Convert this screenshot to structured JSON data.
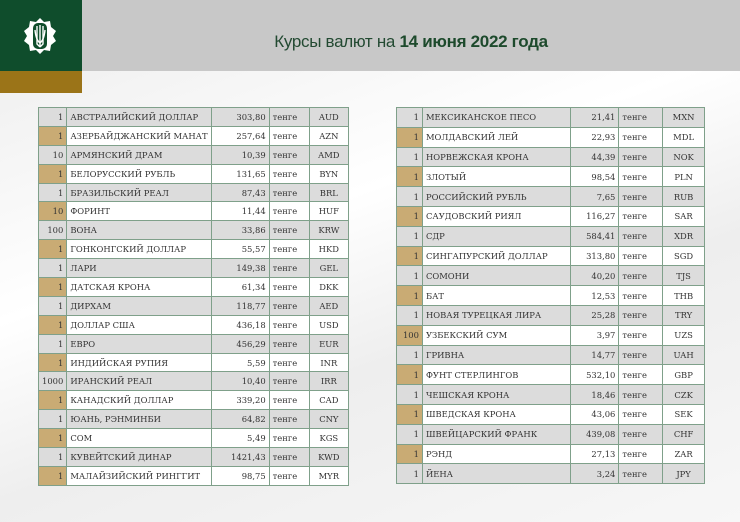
{
  "header": {
    "title_prefix": "Курсы валют на",
    "title_date": "14 июня 2022 года",
    "logo": "national-bank-kazakhstan-emblem"
  },
  "colors": {
    "brand_green": "#0f4d2c",
    "gold": "#9b7418",
    "row_alt_gray": "#dcdcdc",
    "nominal_tan": "#c9ab74"
  },
  "left_table": [
    {
      "nominal": "1",
      "name": "АВСТРАЛИЙСКИЙ ДОЛЛАР",
      "rate": "303,80",
      "unit": "тенге",
      "code": "AUD"
    },
    {
      "nominal": "1",
      "name": "АЗЕРБАЙДЖАНСКИЙ МАНАТ",
      "rate": "257,64",
      "unit": "тенге",
      "code": "AZN"
    },
    {
      "nominal": "10",
      "name": "АРМЯНСКИЙ  ДРАМ",
      "rate": "10,39",
      "unit": "тенге",
      "code": "AMD"
    },
    {
      "nominal": "1",
      "name": "БЕЛОРУССКИЙ РУБЛЬ",
      "rate": "131,65",
      "unit": "тенге",
      "code": "BYN"
    },
    {
      "nominal": "1",
      "name": "БРАЗИЛЬСКИЙ РЕАЛ",
      "rate": "87,43",
      "unit": "тенге",
      "code": "BRL"
    },
    {
      "nominal": "10",
      "name": "ФОРИНТ",
      "rate": "11,44",
      "unit": "тенге",
      "code": "HUF"
    },
    {
      "nominal": "100",
      "name": "ВОНА",
      "rate": "33,86",
      "unit": "тенге",
      "code": "KRW"
    },
    {
      "nominal": "1",
      "name": "ГОНКОНГСКИЙ ДОЛЛАР",
      "rate": "55,57",
      "unit": "тенге",
      "code": "HKD"
    },
    {
      "nominal": "1",
      "name": "ЛАРИ",
      "rate": "149,38",
      "unit": "тенге",
      "code": "GEL"
    },
    {
      "nominal": "1",
      "name": "ДАТСКАЯ КРОНА",
      "rate": "61,34",
      "unit": "тенге",
      "code": "DKK"
    },
    {
      "nominal": "1",
      "name": "ДИРХАМ",
      "rate": "118,77",
      "unit": "тенге",
      "code": "AED"
    },
    {
      "nominal": "1",
      "name": "ДОЛЛАР США",
      "rate": "436,18",
      "unit": "тенге",
      "code": "USD"
    },
    {
      "nominal": "1",
      "name": "ЕВРО",
      "rate": "456,29",
      "unit": "тенге",
      "code": "EUR"
    },
    {
      "nominal": "1",
      "name": "ИНДИЙСКАЯ РУПИЯ",
      "rate": "5,59",
      "unit": "тенге",
      "code": "INR"
    },
    {
      "nominal": "1000",
      "name": "ИРАНСКИЙ РЕАЛ",
      "rate": "10,40",
      "unit": "тенге",
      "code": "IRR"
    },
    {
      "nominal": "1",
      "name": "КАНАДСКИЙ ДОЛЛАР",
      "rate": "339,20",
      "unit": "тенге",
      "code": "CAD"
    },
    {
      "nominal": "1",
      "name": "ЮАНЬ, РЭНМИНБИ",
      "rate": "64,82",
      "unit": "тенге",
      "code": "CNY"
    },
    {
      "nominal": "1",
      "name": "СОМ",
      "rate": "5,49",
      "unit": "тенге",
      "code": "KGS"
    },
    {
      "nominal": "1",
      "name": "КУВЕЙТСКИЙ ДИНАР",
      "rate": "1421,43",
      "unit": "тенге",
      "code": "KWD"
    },
    {
      "nominal": "1",
      "name": "МАЛАЙЗИЙСКИЙ РИНГГИТ",
      "rate": "98,75",
      "unit": "тенге",
      "code": "MYR"
    }
  ],
  "right_table": [
    {
      "nominal": "1",
      "name": "МЕКСИКАНСКОЕ ПЕСО",
      "rate": "21,41",
      "unit": "тенге",
      "code": "MXN"
    },
    {
      "nominal": "1",
      "name": "МОЛДАВСКИЙ ЛЕЙ",
      "rate": "22,93",
      "unit": "тенге",
      "code": "MDL"
    },
    {
      "nominal": "1",
      "name": "НОРВЕЖСКАЯ КРОНА",
      "rate": "44,39",
      "unit": "тенге",
      "code": "NOK"
    },
    {
      "nominal": "1",
      "name": "ЗЛОТЫЙ",
      "rate": "98,54",
      "unit": "тенге",
      "code": "PLN"
    },
    {
      "nominal": "1",
      "name": "РОССИЙСКИЙ РУБЛЬ",
      "rate": "7,65",
      "unit": "тенге",
      "code": "RUB"
    },
    {
      "nominal": "1",
      "name": "САУДОВСКИЙ РИЯЛ",
      "rate": "116,27",
      "unit": "тенге",
      "code": "SAR"
    },
    {
      "nominal": "1",
      "name": "СДР",
      "rate": "584,41",
      "unit": "тенге",
      "code": "XDR"
    },
    {
      "nominal": "1",
      "name": "СИНГАПУРСКИЙ ДОЛЛАР",
      "rate": "313,80",
      "unit": "тенге",
      "code": "SGD"
    },
    {
      "nominal": "1",
      "name": "СОМОНИ",
      "rate": "40,20",
      "unit": "тенге",
      "code": "TJS"
    },
    {
      "nominal": "1",
      "name": "БАТ",
      "rate": "12,53",
      "unit": "тенге",
      "code": "THB"
    },
    {
      "nominal": "1",
      "name": "НОВАЯ ТУРЕЦКАЯ ЛИРА",
      "rate": "25,28",
      "unit": "тенге",
      "code": "TRY"
    },
    {
      "nominal": "100",
      "name": "УЗБЕКСКИЙ СУМ",
      "rate": "3,97",
      "unit": "тенге",
      "code": "UZS"
    },
    {
      "nominal": "1",
      "name": "ГРИВНА",
      "rate": "14,77",
      "unit": "тенге",
      "code": "UAH"
    },
    {
      "nominal": "1",
      "name": "ФУНТ СТЕРЛИНГОВ",
      "rate": "532,10",
      "unit": "тенге",
      "code": "GBP"
    },
    {
      "nominal": "1",
      "name": "ЧЕШСКАЯ КРОНА",
      "rate": "18,46",
      "unit": "тенге",
      "code": "CZK"
    },
    {
      "nominal": "1",
      "name": "ШВЕДСКАЯ КРОНА",
      "rate": "43,06",
      "unit": "тенге",
      "code": "SEK"
    },
    {
      "nominal": "1",
      "name": "ШВЕЙЦАРСКИЙ ФРАНК",
      "rate": "439,08",
      "unit": "тенге",
      "code": "CHF"
    },
    {
      "nominal": "1",
      "name": "РЭНД",
      "rate": "27,13",
      "unit": "тенге",
      "code": "ZAR"
    },
    {
      "nominal": "1",
      "name": "ЙЕНА",
      "rate": "3,24",
      "unit": "тенге",
      "code": "JPY"
    }
  ]
}
